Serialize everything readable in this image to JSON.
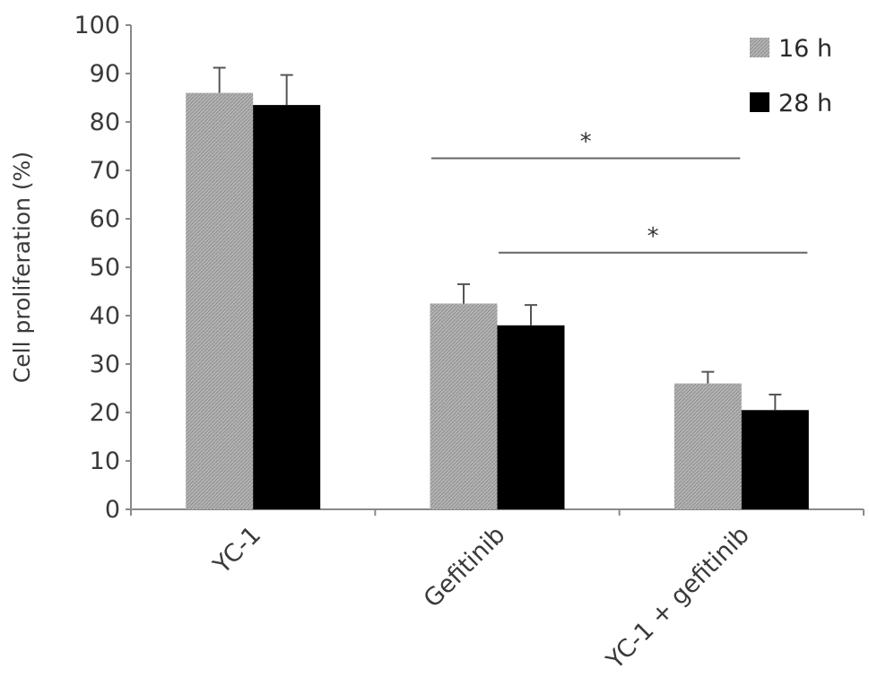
{
  "chart_data": {
    "type": "bar",
    "categories": [
      "YC-1",
      "Gefitinib",
      "YC-1 + gefitinib"
    ],
    "series": [
      {
        "name": "16 h",
        "values": [
          86,
          42.5,
          26
        ],
        "errors": [
          5.2,
          4.0,
          2.4
        ],
        "color": "#a9a9a9",
        "pattern": "hatched-gray"
      },
      {
        "name": "28 h",
        "values": [
          83.5,
          38,
          20.5
        ],
        "errors": [
          6.2,
          4.2,
          3.2
        ],
        "color": "#000000",
        "pattern": "solid"
      }
    ],
    "title": "",
    "xlabel": "",
    "ylabel": "Cell proliferation (%)",
    "ylim": [
      0,
      100
    ],
    "yticks": [
      0,
      10,
      20,
      30,
      40,
      50,
      60,
      70,
      80,
      90,
      100
    ],
    "grid": false,
    "legend_position": "top-right",
    "significance": [
      {
        "from": "Gefitinib 16 h",
        "to": "YC-1 + gefitinib 16 h",
        "label": "*"
      },
      {
        "from": "Gefitinib 28 h",
        "to": "YC-1 + gefitinib 28 h",
        "label": "*"
      }
    ]
  }
}
